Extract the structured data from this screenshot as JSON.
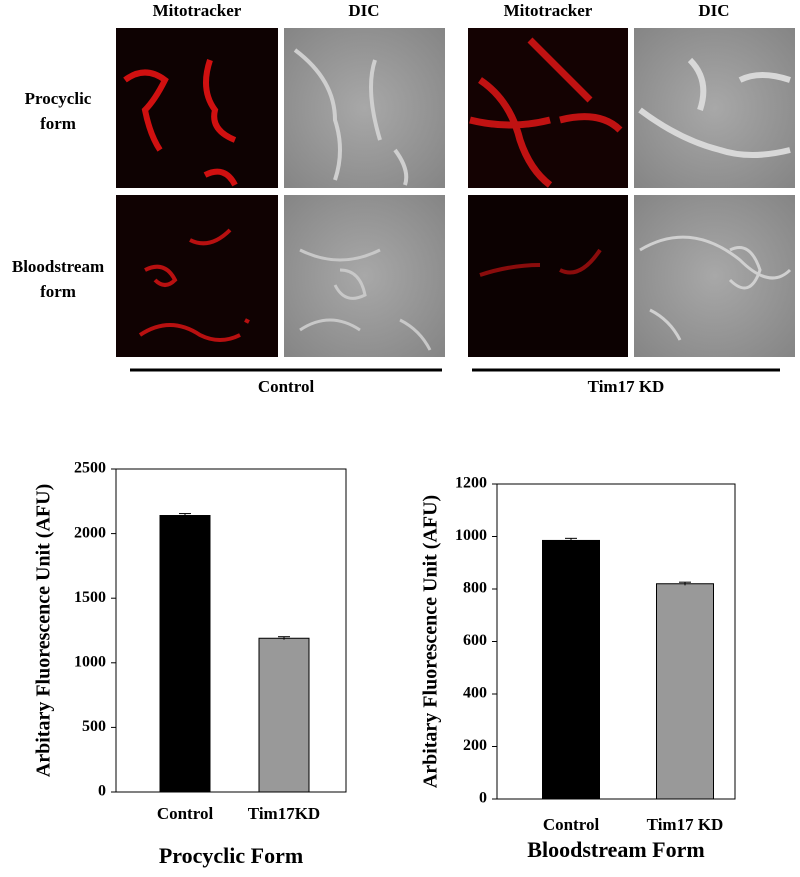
{
  "micrographs": {
    "column_headers": [
      "Mitotracker",
      "DIC",
      "Mitotracker",
      "DIC"
    ],
    "row_labels": [
      [
        "Procyclic",
        "form"
      ],
      [
        "Bloodstream",
        "form"
      ]
    ],
    "group_labels": [
      "Control",
      "Tim17 KD"
    ]
  },
  "chart_data": [
    {
      "type": "bar",
      "title": "Procyclic Form",
      "ylabel": "Arbitary Fluorescence Unit (AFU)",
      "categories": [
        "Control",
        "Tim17KD"
      ],
      "values": [
        2140,
        1190
      ],
      "errors": [
        15,
        12
      ],
      "colors": [
        "#000000",
        "#999999"
      ],
      "ylim": [
        0,
        2500
      ],
      "yticks": [
        0,
        500,
        1000,
        1500,
        2000,
        2500
      ]
    },
    {
      "type": "bar",
      "title": "Bloodstream Form",
      "ylabel": "Arbitary Fluorescence Unit (AFU)",
      "categories": [
        "Control",
        "Tim17 KD"
      ],
      "values": [
        985,
        820
      ],
      "errors": [
        8,
        6
      ],
      "colors": [
        "#000000",
        "#999999"
      ],
      "ylim": [
        0,
        1200
      ],
      "yticks": [
        0,
        200,
        400,
        600,
        800,
        1000,
        1200
      ]
    }
  ]
}
